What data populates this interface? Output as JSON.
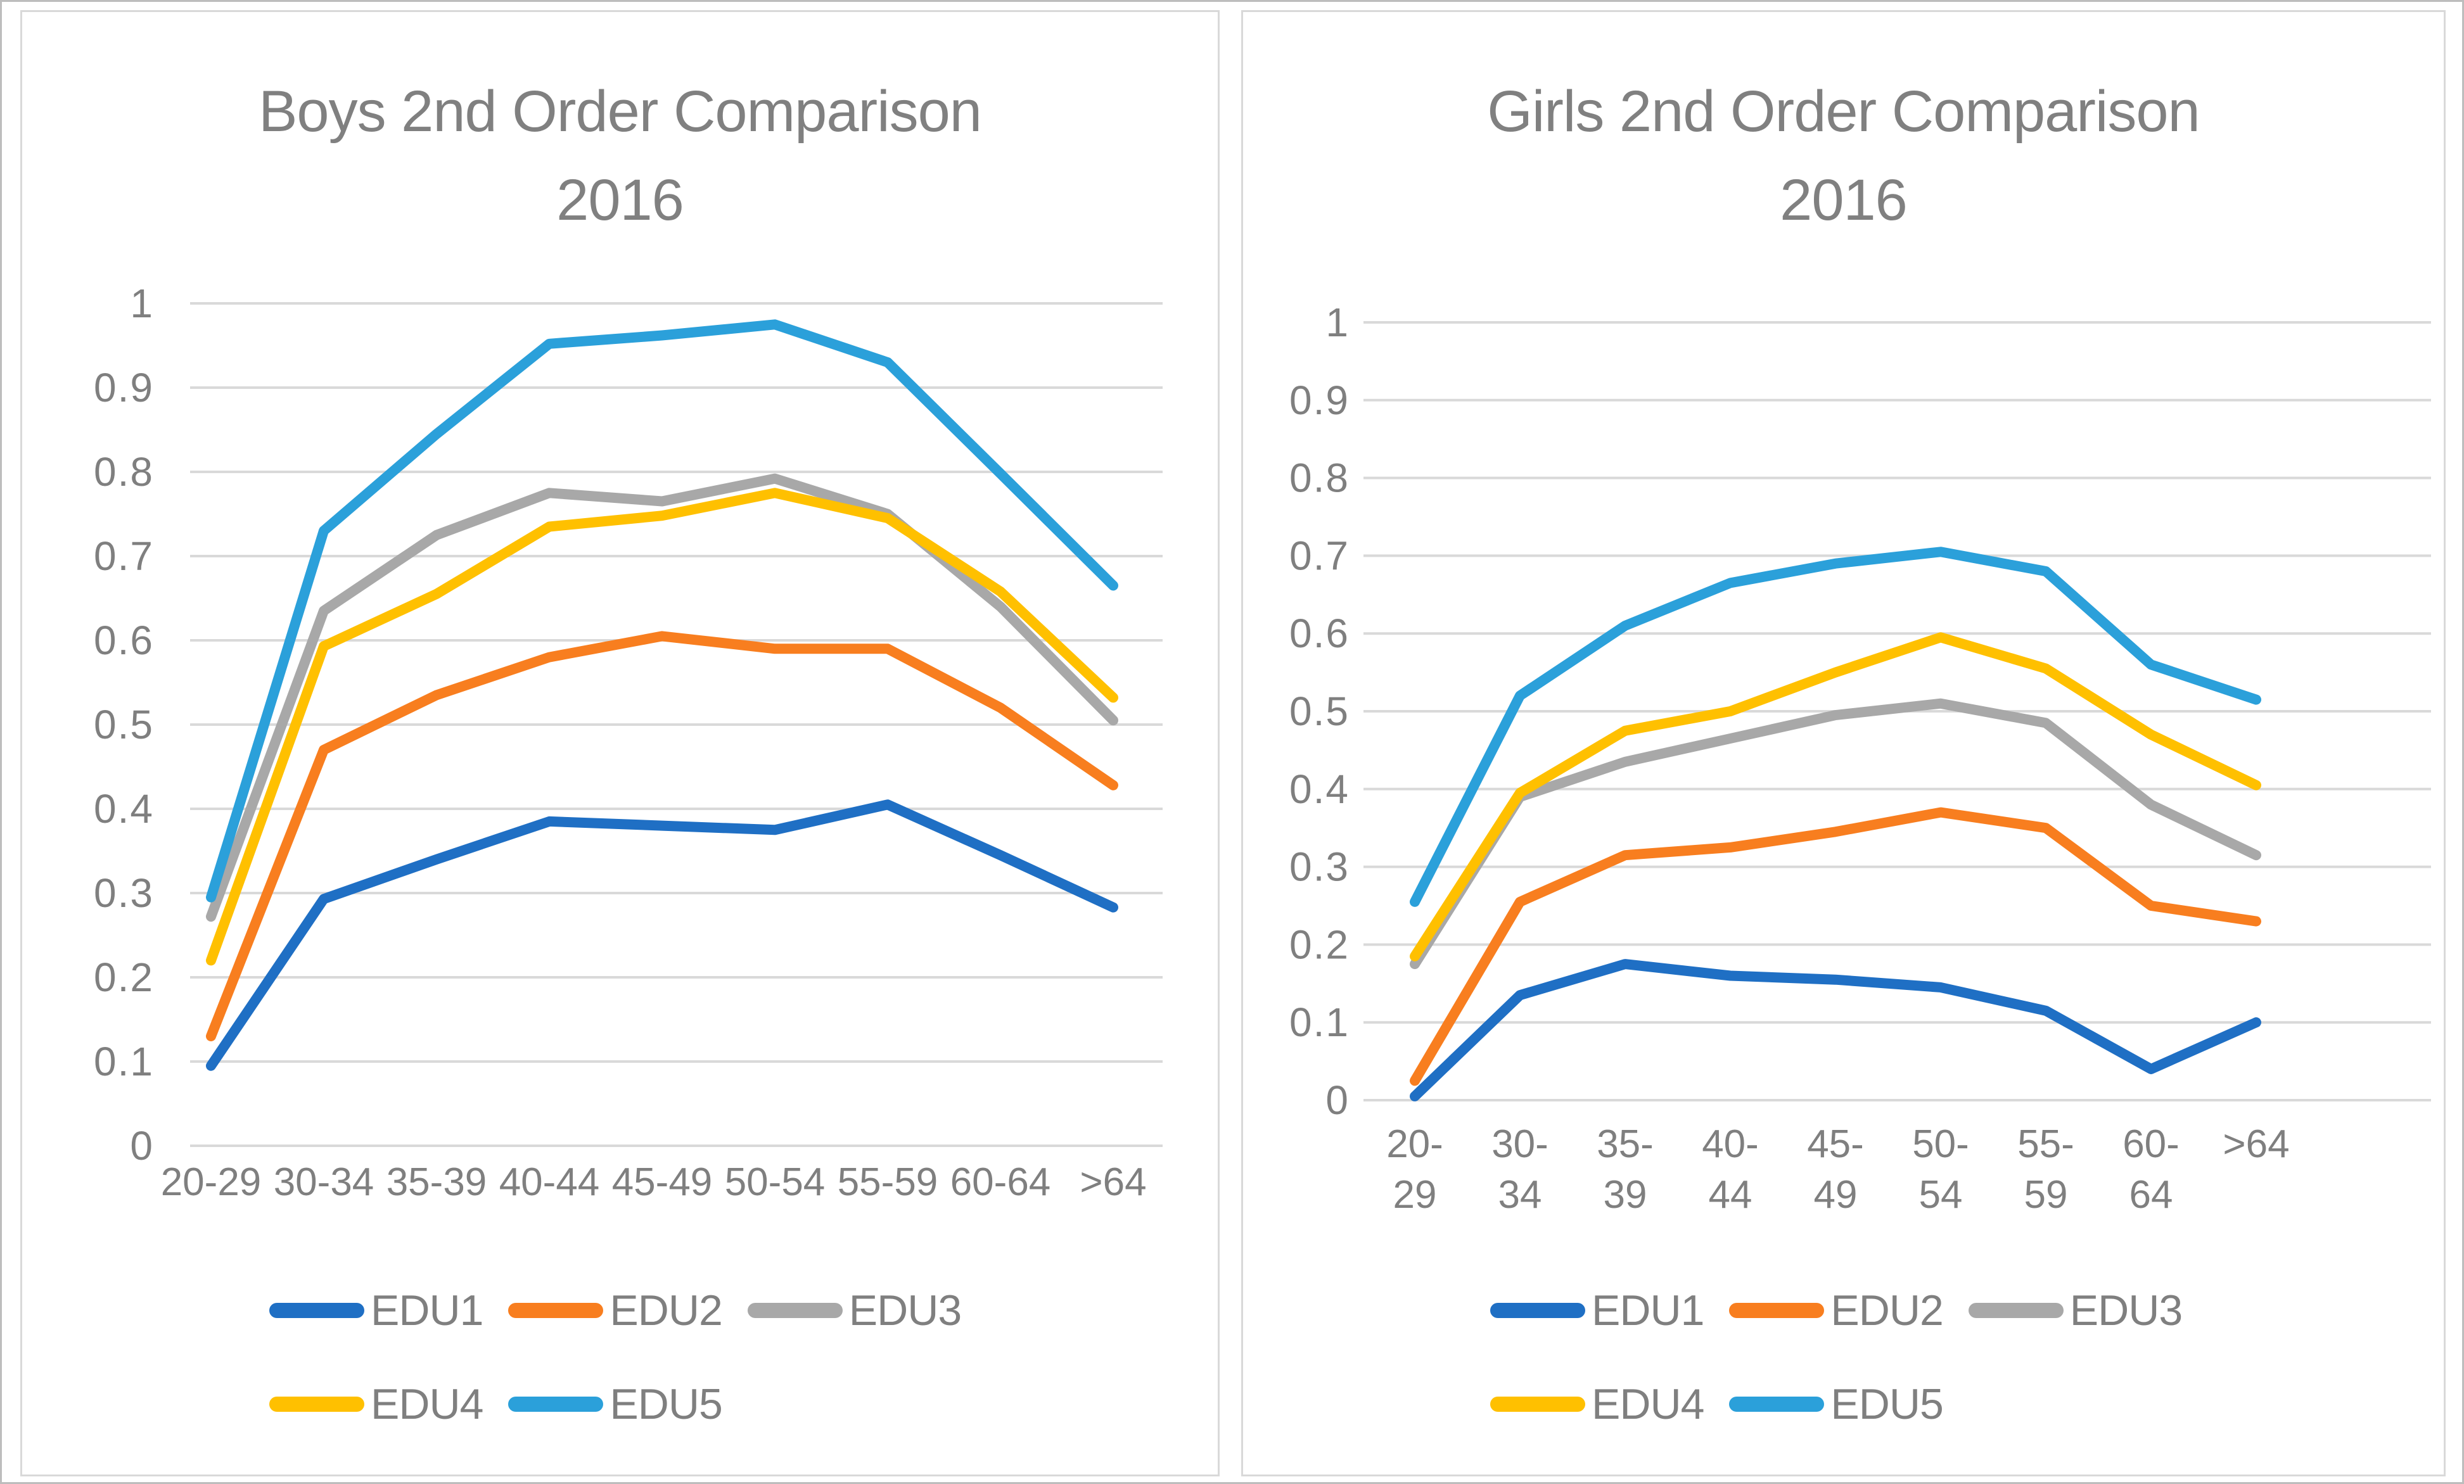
{
  "page": {
    "background": "#ffffff",
    "outer_border_color": "#bdbdbd",
    "panel_border_color": "#d9d9d9",
    "grid_color": "#d9d9d9",
    "axis_text_color": "#7f7f7f",
    "title_text_color": "#808080"
  },
  "chart_data": [
    {
      "type": "line",
      "title": "Boys 2nd Order Comparison 2016",
      "title_lines": [
        "Boys 2nd Order Comparison",
        "2016"
      ],
      "xlabel": "",
      "ylabel": "",
      "ylim": [
        0,
        1
      ],
      "grid": true,
      "legend_position": "bottom",
      "ytick_labels": [
        "1",
        "0.9",
        "0.8",
        "0.7",
        "0.6",
        "0.5",
        "0.4",
        "0.3",
        "0.2",
        "0.1",
        "0"
      ],
      "categories": [
        "20-29",
        "30-34",
        "35-39",
        "40-44",
        "45-49",
        "50-54",
        "55-59",
        "60-64",
        ">64"
      ],
      "category_display": [
        [
          "20-29"
        ],
        [
          "30-34"
        ],
        [
          "35-39"
        ],
        [
          "40-44"
        ],
        [
          "45-49"
        ],
        [
          "50-54"
        ],
        [
          "55-59"
        ],
        [
          "60-64"
        ],
        [
          ">64"
        ]
      ],
      "legend_rows": [
        [
          "EDU1",
          "EDU2",
          "EDU3"
        ],
        [
          "EDU4",
          "EDU5"
        ]
      ],
      "series": [
        {
          "name": "EDU1",
          "color": "#1F6FC4",
          "values": [
            0.095,
            0.293,
            0.34,
            0.385,
            0.38,
            0.375,
            0.405,
            0.345,
            0.283
          ]
        },
        {
          "name": "EDU2",
          "color": "#F87E1F",
          "values": [
            0.13,
            0.47,
            0.535,
            0.58,
            0.605,
            0.59,
            0.59,
            0.52,
            0.428
          ]
        },
        {
          "name": "EDU3",
          "color": "#A8A8A8",
          "values": [
            0.272,
            0.635,
            0.725,
            0.775,
            0.765,
            0.792,
            0.75,
            0.64,
            0.505
          ]
        },
        {
          "name": "EDU4",
          "color": "#FFC000",
          "values": [
            0.22,
            0.593,
            0.655,
            0.735,
            0.748,
            0.775,
            0.745,
            0.658,
            0.532
          ]
        },
        {
          "name": "EDU5",
          "color": "#2BA0DA",
          "values": [
            0.295,
            0.73,
            0.845,
            0.952,
            0.962,
            0.975,
            0.93,
            0.798,
            0.665
          ]
        }
      ]
    },
    {
      "type": "line",
      "title": "Girls 2nd Order Comparison 2016",
      "title_lines": [
        "Girls 2nd Order Comparison",
        "2016"
      ],
      "xlabel": "",
      "ylabel": "",
      "ylim": [
        0,
        1
      ],
      "grid": true,
      "legend_position": "bottom",
      "ytick_labels": [
        "1",
        "0.9",
        "0.8",
        "0.7",
        "0.6",
        "0.5",
        "0.4",
        "0.3",
        "0.2",
        "0.1",
        "0"
      ],
      "categories": [
        "20-29",
        "30-34",
        "35-39",
        "40-44",
        "45-49",
        "50-54",
        "55-59",
        "60-64",
        ">64"
      ],
      "category_display": [
        [
          "20-",
          "29"
        ],
        [
          "30-",
          "34"
        ],
        [
          "35-",
          "39"
        ],
        [
          "40-",
          "44"
        ],
        [
          "45-",
          "49"
        ],
        [
          "50-",
          "54"
        ],
        [
          "55-",
          "59"
        ],
        [
          "60-",
          "64"
        ],
        [
          ">64"
        ]
      ],
      "legend_rows": [
        [
          "EDU1",
          "EDU2",
          "EDU3"
        ],
        [
          "EDU4",
          "EDU5"
        ]
      ],
      "series": [
        {
          "name": "EDU1",
          "color": "#1F6FC4",
          "values": [
            0.005,
            0.135,
            0.175,
            0.16,
            0.155,
            0.145,
            0.115,
            0.04,
            0.1
          ]
        },
        {
          "name": "EDU2",
          "color": "#F87E1F",
          "values": [
            0.025,
            0.255,
            0.315,
            0.325,
            0.345,
            0.37,
            0.35,
            0.25,
            0.23
          ]
        },
        {
          "name": "EDU3",
          "color": "#A8A8A8",
          "values": [
            0.175,
            0.39,
            0.435,
            0.465,
            0.495,
            0.51,
            0.485,
            0.38,
            0.315
          ]
        },
        {
          "name": "EDU4",
          "color": "#FFC000",
          "values": [
            0.185,
            0.395,
            0.475,
            0.5,
            0.55,
            0.595,
            0.555,
            0.47,
            0.405
          ]
        },
        {
          "name": "EDU5",
          "color": "#2BA0DA",
          "values": [
            0.255,
            0.52,
            0.61,
            0.665,
            0.69,
            0.705,
            0.68,
            0.56,
            0.515
          ]
        }
      ]
    }
  ]
}
